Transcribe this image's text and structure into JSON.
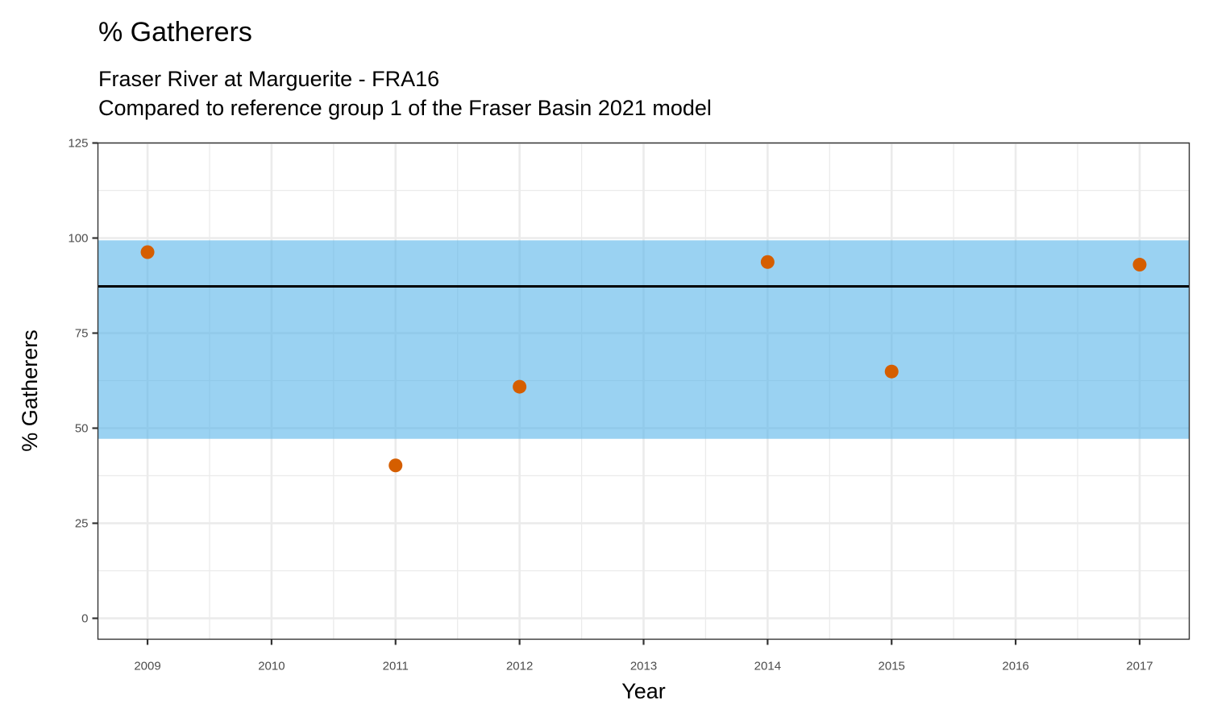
{
  "chart_data": {
    "type": "scatter",
    "title": "% Gatherers",
    "subtitle_lines": [
      "Fraser River at Marguerite - FRA16",
      "Compared to reference group 1 of the Fraser Basin 2021 model"
    ],
    "xlabel": "Year",
    "ylabel": "% Gatherers",
    "x_ticks": [
      2009,
      2010,
      2011,
      2012,
      2013,
      2014,
      2015,
      2016,
      2017
    ],
    "x_tick_labels": [
      "2009",
      "2010",
      "2011",
      "2012",
      "2013",
      "2014",
      "2015",
      "2016",
      "2017"
    ],
    "y_ticks": [
      0,
      25,
      50,
      75,
      100,
      125
    ],
    "y_tick_labels": [
      "0",
      "25",
      "50",
      "75",
      "100",
      "125"
    ],
    "xlim": [
      2008.6,
      2017.4
    ],
    "ylim": [
      -5.5,
      125
    ],
    "grid": true,
    "reference_band": {
      "ymin": 47.2,
      "ymax": 99.4,
      "color": "#56B4E9",
      "opacity": 0.6
    },
    "reference_line": {
      "y": 87.3,
      "color": "#000000"
    },
    "points": {
      "x": [
        2009,
        2011,
        2012,
        2014,
        2015,
        2017
      ],
      "y": [
        96.3,
        40.2,
        60.9,
        93.7,
        64.9,
        93.0
      ],
      "color": "#D55E00"
    }
  }
}
